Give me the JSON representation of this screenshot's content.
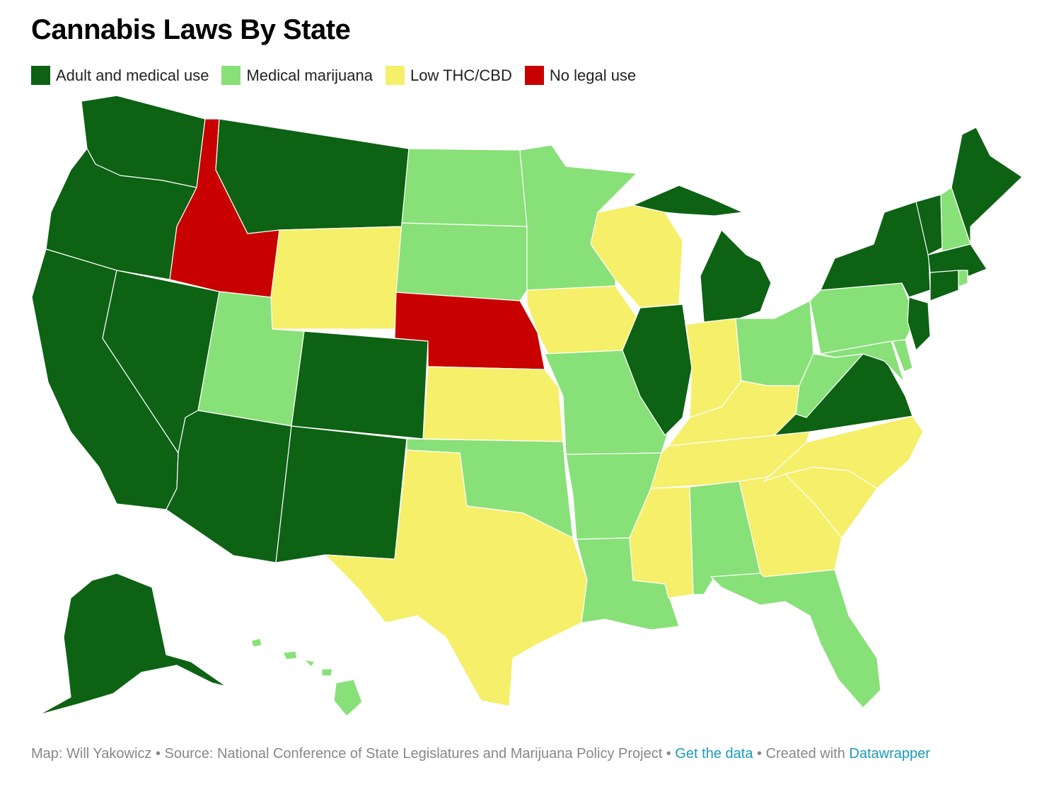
{
  "title": "Cannabis Laws By State",
  "legend": [
    {
      "label": "Adult and medical use",
      "color": "#0d6214"
    },
    {
      "label": "Medical marijuana",
      "color": "#88e078"
    },
    {
      "label": "Low THC/CBD",
      "color": "#f5ef6a"
    },
    {
      "label": "No legal use",
      "color": "#c80000"
    }
  ],
  "footer": {
    "credit": "Map: Will Yakowicz • Source: National Conference of State Legislatures and Marijuana Policy Project • ",
    "data_link": "Get the data",
    "sep": " • Created with ",
    "tool_link": "Datawrapper"
  },
  "states": {
    "WA": 0,
    "OR": 0,
    "CA": 0,
    "NV": 0,
    "ID": 3,
    "MT": 0,
    "WY": 2,
    "UT": 1,
    "AZ": 0,
    "CO": 0,
    "NM": 0,
    "ND": 1,
    "SD": 1,
    "NE": 3,
    "KS": 2,
    "OK": 1,
    "TX": 2,
    "MN": 1,
    "IA": 2,
    "MO": 1,
    "AR": 1,
    "LA": 1,
    "WI": 2,
    "IL": 0,
    "MI": 0,
    "IN": 2,
    "OH": 1,
    "KY": 2,
    "TN": 2,
    "MS": 2,
    "AL": 1,
    "GA": 2,
    "FL": 1,
    "SC": 2,
    "NC": 2,
    "VA": 0,
    "WV": 1,
    "PA": 1,
    "NY": 0,
    "VT": 0,
    "NH": 1,
    "ME": 0,
    "MA": 0,
    "CT": 0,
    "RI": 1,
    "NJ": 0,
    "DE": 1,
    "MD": 1,
    "AK": 0,
    "HI": 1
  }
}
